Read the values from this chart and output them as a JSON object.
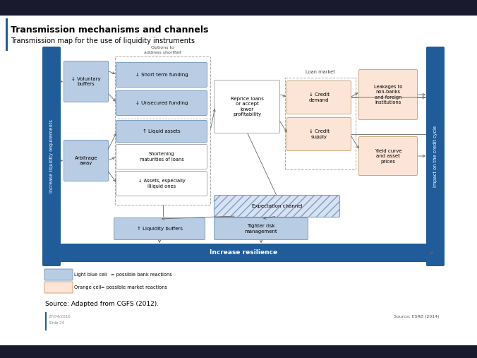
{
  "title_bold": "Transmission mechanisms and channels",
  "title_sub": "Transmission map for the use of liquidity instruments",
  "source_text": "Source: Adapted from CGFS (2012).",
  "esrb_text": "Source: ESRB (2014)",
  "date_text": "27/04/2016\nSlide 24",
  "increase_res_text": "Increase resilience",
  "left_bar_text": "Increase liquidity requirements",
  "right_bar_text": "Impact on the credit cycle",
  "blue_dark": "#1f5c99",
  "blue_light": "#b8cce4",
  "blue_mid": "#4f81bd",
  "orange_light": "#fce4d6",
  "orange_border": "#c9a87c",
  "white": "#ffffff",
  "grey_border": "#aaaaaa",
  "hatch_fill": "#d9e2f3",
  "top_bar_color": "#1a1a2e",
  "bottom_bar_color": "#2d2d2d"
}
